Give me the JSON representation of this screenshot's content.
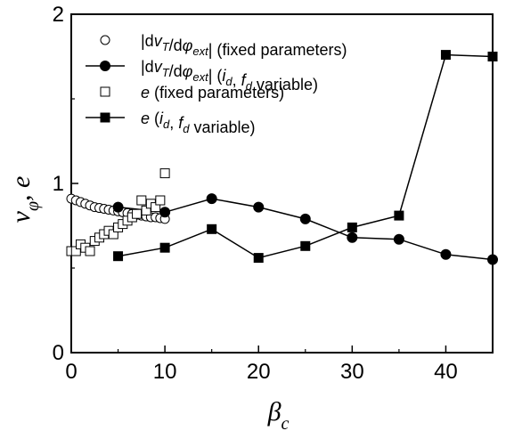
{
  "chart_data": {
    "type": "scatter",
    "xlim": [
      0,
      45
    ],
    "ylim": [
      0,
      2
    ],
    "x_ticks": [
      "0",
      "10",
      "20",
      "30",
      "40"
    ],
    "x_tick_values": [
      0,
      10,
      20,
      30,
      40
    ],
    "y_ticks": [
      "0",
      "1",
      "2"
    ],
    "y_tick_values": [
      0,
      1,
      2
    ],
    "xlabel": {
      "symbol": "β",
      "sub": "c"
    },
    "ylabel": {
      "symbol": "v",
      "sub": "φ",
      "rest": ", e"
    },
    "grid": false,
    "legend_position": "top-left",
    "series": [
      {
        "name": "|dv_T/dφ_ext| (fixed parameters)",
        "legend": [
          {
            "t": "|d"
          },
          {
            "t": "v",
            "i": true
          },
          {
            "t": "T",
            "sub": true,
            "i": true
          },
          {
            "t": "/d"
          },
          {
            "t": "φ",
            "i": true
          },
          {
            "t": "ext",
            "sub": true,
            "i": true
          },
          {
            "t": "| (fixed parameters)"
          }
        ],
        "marker": "circle-open",
        "line": false,
        "x": [
          0.0,
          0.5,
          1.0,
          1.5,
          2.0,
          2.5,
          3.0,
          3.5,
          4.0,
          4.5,
          5.0,
          5.5,
          6.0,
          6.5,
          7.0,
          7.5,
          8.0,
          8.5,
          9.0,
          9.5,
          10.0
        ],
        "y": [
          0.91,
          0.9,
          0.89,
          0.88,
          0.87,
          0.86,
          0.855,
          0.85,
          0.845,
          0.84,
          0.835,
          0.83,
          0.825,
          0.82,
          0.815,
          0.81,
          0.805,
          0.8,
          0.8,
          0.795,
          0.79
        ]
      },
      {
        "name": "|dv_T/dφ_ext| (i_d, f_d variable)",
        "legend": [
          {
            "t": "|d"
          },
          {
            "t": "v",
            "i": true
          },
          {
            "t": "T",
            "sub": true,
            "i": true
          },
          {
            "t": "/d"
          },
          {
            "t": "φ",
            "i": true
          },
          {
            "t": "ext",
            "sub": true,
            "i": true
          },
          {
            "t": "| ("
          },
          {
            "t": "i",
            "i": true
          },
          {
            "t": "d",
            "sub": true,
            "i": true
          },
          {
            "t": ", "
          },
          {
            "t": "f",
            "i": true
          },
          {
            "t": "d",
            "sub": true,
            "i": true
          },
          {
            "t": " variable)"
          }
        ],
        "marker": "circle-filled",
        "line": true,
        "x": [
          5,
          10,
          15,
          20,
          25,
          30,
          35,
          40,
          45
        ],
        "y": [
          0.86,
          0.83,
          0.91,
          0.86,
          0.79,
          0.68,
          0.67,
          0.58,
          0.55
        ]
      },
      {
        "name": "e (fixed parameters)",
        "legend": [
          {
            "t": "e",
            "i": true
          },
          {
            "t": " (fixed parameters)"
          }
        ],
        "marker": "square-open",
        "line": false,
        "x": [
          0.0,
          0.5,
          1.0,
          1.5,
          2.0,
          2.5,
          3.0,
          3.5,
          4.0,
          4.5,
          5.0,
          5.5,
          6.0,
          6.5,
          7.0,
          7.5,
          8.0,
          8.5,
          9.0,
          9.5,
          10.0
        ],
        "y": [
          0.6,
          0.6,
          0.64,
          0.62,
          0.6,
          0.66,
          0.68,
          0.7,
          0.72,
          0.7,
          0.74,
          0.76,
          0.78,
          0.8,
          0.82,
          0.9,
          0.84,
          0.88,
          0.86,
          0.9,
          1.06
        ]
      },
      {
        "name": "e (i_d, f_d variable)",
        "legend": [
          {
            "t": "e",
            "i": true
          },
          {
            "t": " ("
          },
          {
            "t": "i",
            "i": true
          },
          {
            "t": "d",
            "sub": true,
            "i": true
          },
          {
            "t": ", "
          },
          {
            "t": "f",
            "i": true
          },
          {
            "t": "d",
            "sub": true,
            "i": true
          },
          {
            "t": " variable)"
          }
        ],
        "marker": "square-filled",
        "line": true,
        "x": [
          5,
          10,
          15,
          20,
          25,
          30,
          35,
          40,
          45
        ],
        "y": [
          0.57,
          0.62,
          0.73,
          0.56,
          0.63,
          0.74,
          0.81,
          1.76,
          1.75
        ]
      }
    ]
  }
}
